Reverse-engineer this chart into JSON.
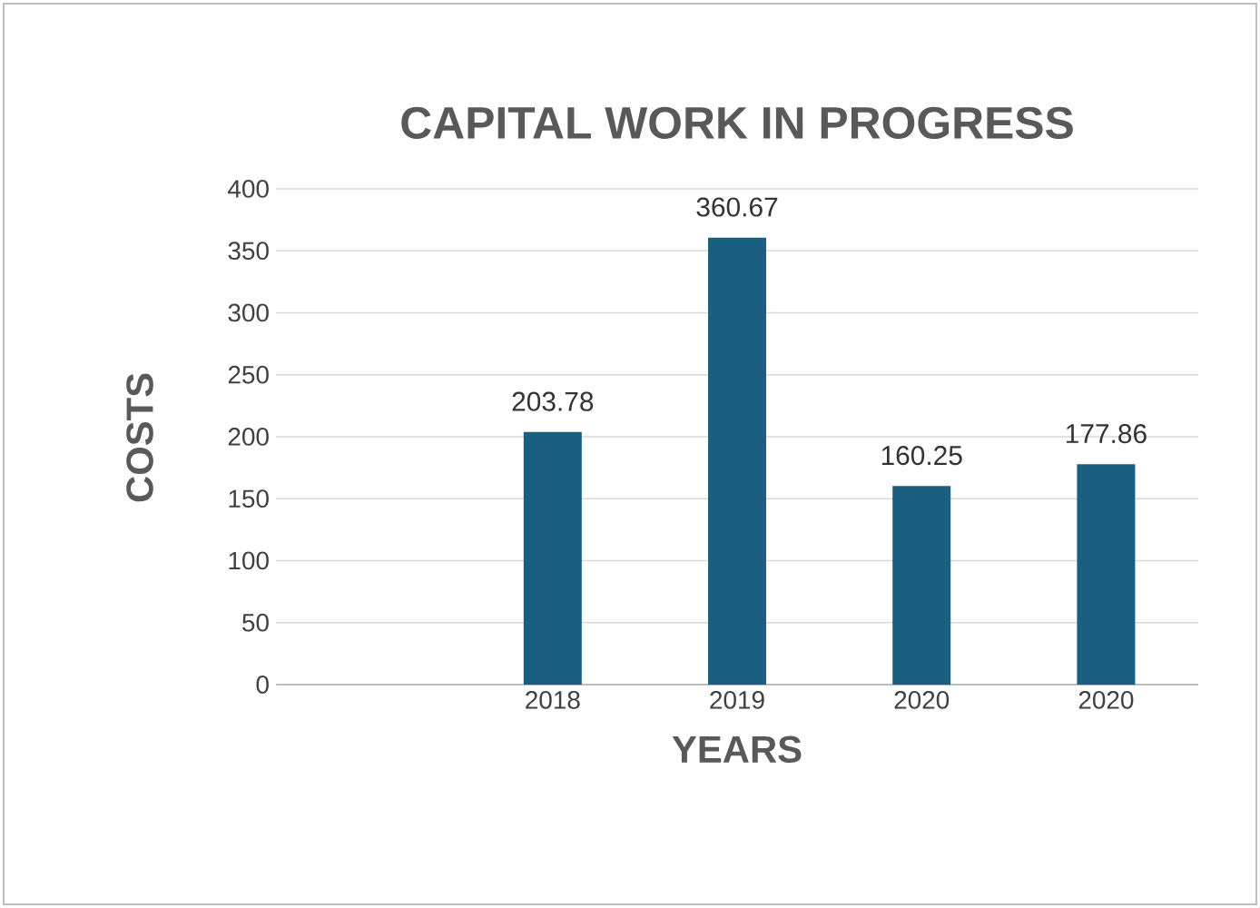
{
  "chart_data": {
    "type": "bar",
    "title": "CAPITAL WORK IN PROGRESS",
    "xlabel": "YEARS",
    "ylabel": "COSTS",
    "categories": [
      null,
      "2018",
      "2019",
      "2020",
      "2020"
    ],
    "values": [
      null,
      203.78,
      360.67,
      160.25,
      177.86
    ],
    "color": "#1b5f80",
    "ylim": [
      0,
      400
    ],
    "yticks": [
      0,
      50,
      100,
      150,
      200,
      250,
      300,
      350,
      400
    ],
    "grid": "y",
    "data_labels": true
  }
}
